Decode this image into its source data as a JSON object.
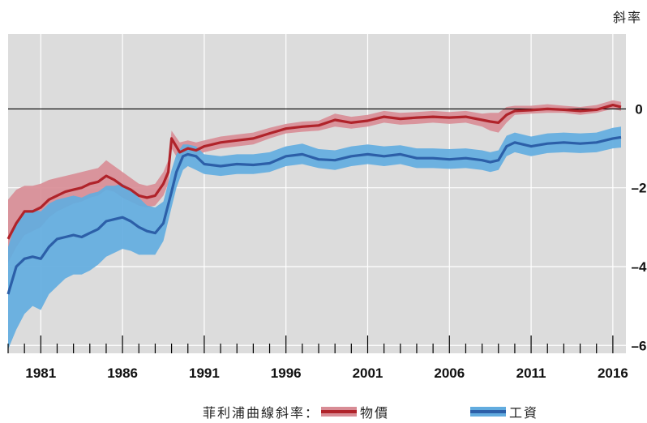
{
  "unit_label": "斜率",
  "legend": {
    "title": "菲利浦曲線斜率：",
    "items": [
      {
        "label": "物價",
        "band_color": "#d88c95",
        "line_color": "#b0232a"
      },
      {
        "label": "工資",
        "band_color": "#62acdf",
        "line_color": "#2c5fa8"
      }
    ]
  },
  "chart_data": {
    "type": "line",
    "title": "",
    "xlabel": "",
    "ylabel": "斜率",
    "xlim": [
      1979,
      2016.8
    ],
    "ylim": [
      -6.2,
      1.9
    ],
    "x_ticks": [
      "1981",
      "1986",
      "1991",
      "1996",
      "2001",
      "2006",
      "2011",
      "2016"
    ],
    "y_ticks": [
      "0",
      "-2",
      "-4",
      "-6"
    ],
    "grid": true,
    "zero_line": true,
    "legend_position": "bottom",
    "series": [
      {
        "name": "物價",
        "color": "#b0232a",
        "band_color": "#d88c95",
        "x": [
          1979.0,
          1979.5,
          1980.0,
          1980.5,
          1981.0,
          1981.5,
          1982.0,
          1982.5,
          1983.0,
          1983.5,
          1984.0,
          1984.5,
          1985.0,
          1985.5,
          1986.0,
          1986.5,
          1987.0,
          1987.5,
          1988.0,
          1988.5,
          1988.8,
          1989.0,
          1989.5,
          1990.0,
          1990.5,
          1991.0,
          1992.0,
          1993.0,
          1994.0,
          1995.0,
          1996.0,
          1997.0,
          1998.0,
          1999.0,
          2000.0,
          2001.0,
          2002.0,
          2003.0,
          2004.0,
          2005.0,
          2006.0,
          2007.0,
          2008.0,
          2008.5,
          2009.0,
          2009.5,
          2010.0,
          2011.0,
          2012.0,
          2013.0,
          2014.0,
          2015.0,
          2016.0,
          2016.5
        ],
        "y": [
          -3.3,
          -2.9,
          -2.6,
          -2.6,
          -2.5,
          -2.3,
          -2.2,
          -2.1,
          -2.05,
          -2.0,
          -1.9,
          -1.85,
          -1.7,
          -1.8,
          -1.95,
          -2.05,
          -2.2,
          -2.25,
          -2.2,
          -1.9,
          -1.6,
          -0.75,
          -1.1,
          -1.0,
          -1.05,
          -0.95,
          -0.85,
          -0.8,
          -0.75,
          -0.62,
          -0.5,
          -0.45,
          -0.42,
          -0.28,
          -0.35,
          -0.3,
          -0.2,
          -0.25,
          -0.22,
          -0.2,
          -0.22,
          -0.2,
          -0.28,
          -0.32,
          -0.35,
          -0.15,
          -0.05,
          -0.03,
          0.0,
          -0.02,
          -0.05,
          -0.02,
          0.1,
          0.05
        ],
        "lower": [
          -3.9,
          -3.5,
          -3.2,
          -3.1,
          -3.0,
          -2.75,
          -2.6,
          -2.5,
          -2.4,
          -2.35,
          -2.25,
          -2.2,
          -2.05,
          -2.1,
          -2.25,
          -2.35,
          -2.45,
          -2.5,
          -2.45,
          -2.2,
          -1.9,
          -1.0,
          -1.35,
          -1.2,
          -1.2,
          -1.1,
          -1.0,
          -0.95,
          -0.9,
          -0.75,
          -0.62,
          -0.58,
          -0.55,
          -0.45,
          -0.5,
          -0.45,
          -0.35,
          -0.4,
          -0.38,
          -0.35,
          -0.38,
          -0.35,
          -0.45,
          -0.55,
          -0.6,
          -0.35,
          -0.15,
          -0.12,
          -0.1,
          -0.1,
          -0.15,
          -0.1,
          0.0,
          -0.05
        ],
        "upper": [
          -2.3,
          -2.05,
          -1.95,
          -1.95,
          -1.9,
          -1.8,
          -1.75,
          -1.7,
          -1.65,
          -1.6,
          -1.55,
          -1.5,
          -1.3,
          -1.45,
          -1.6,
          -1.75,
          -1.9,
          -1.95,
          -1.9,
          -1.6,
          -1.3,
          -0.55,
          -0.85,
          -0.8,
          -0.85,
          -0.8,
          -0.7,
          -0.65,
          -0.6,
          -0.48,
          -0.38,
          -0.32,
          -0.3,
          -0.12,
          -0.2,
          -0.15,
          -0.05,
          -0.1,
          -0.08,
          -0.05,
          -0.08,
          -0.05,
          -0.12,
          -0.1,
          -0.1,
          0.05,
          0.08,
          0.08,
          0.12,
          0.08,
          0.05,
          0.1,
          0.22,
          0.18
        ]
      },
      {
        "name": "工資",
        "color": "#2c5fa8",
        "band_color": "#62acdf",
        "x": [
          1979.0,
          1979.5,
          1980.0,
          1980.5,
          1981.0,
          1981.5,
          1982.0,
          1982.5,
          1983.0,
          1983.5,
          1984.0,
          1984.5,
          1985.0,
          1985.5,
          1986.0,
          1986.5,
          1987.0,
          1987.5,
          1988.0,
          1988.5,
          1989.0,
          1989.3,
          1989.7,
          1990.0,
          1990.5,
          1991.0,
          1992.0,
          1993.0,
          1994.0,
          1995.0,
          1996.0,
          1997.0,
          1998.0,
          1999.0,
          2000.0,
          2001.0,
          2002.0,
          2003.0,
          2004.0,
          2005.0,
          2006.0,
          2007.0,
          2008.0,
          2008.5,
          2009.0,
          2009.5,
          2010.0,
          2011.0,
          2012.0,
          2013.0,
          2014.0,
          2015.0,
          2016.0,
          2016.5
        ],
        "y": [
          -4.7,
          -4.0,
          -3.8,
          -3.75,
          -3.8,
          -3.5,
          -3.3,
          -3.25,
          -3.2,
          -3.25,
          -3.15,
          -3.05,
          -2.85,
          -2.8,
          -2.75,
          -2.85,
          -3.0,
          -3.1,
          -3.15,
          -2.9,
          -2.1,
          -1.6,
          -1.2,
          -1.15,
          -1.2,
          -1.4,
          -1.45,
          -1.4,
          -1.42,
          -1.38,
          -1.2,
          -1.15,
          -1.28,
          -1.3,
          -1.2,
          -1.15,
          -1.2,
          -1.15,
          -1.25,
          -1.25,
          -1.28,
          -1.25,
          -1.3,
          -1.35,
          -1.3,
          -0.95,
          -0.85,
          -0.95,
          -0.88,
          -0.85,
          -0.88,
          -0.85,
          -0.75,
          -0.72
        ],
        "lower": [
          -6.1,
          -5.6,
          -5.2,
          -5.0,
          -5.1,
          -4.7,
          -4.5,
          -4.3,
          -4.2,
          -4.2,
          -4.1,
          -3.95,
          -3.75,
          -3.65,
          -3.55,
          -3.6,
          -3.7,
          -3.7,
          -3.7,
          -3.35,
          -2.5,
          -2.0,
          -1.55,
          -1.45,
          -1.55,
          -1.65,
          -1.7,
          -1.65,
          -1.65,
          -1.6,
          -1.45,
          -1.4,
          -1.5,
          -1.55,
          -1.45,
          -1.4,
          -1.45,
          -1.4,
          -1.5,
          -1.5,
          -1.52,
          -1.5,
          -1.55,
          -1.6,
          -1.55,
          -1.2,
          -1.1,
          -1.2,
          -1.12,
          -1.1,
          -1.12,
          -1.1,
          -1.0,
          -0.98
        ],
        "upper": [
          -3.5,
          -2.85,
          -2.6,
          -2.55,
          -2.6,
          -2.4,
          -2.3,
          -2.25,
          -2.2,
          -2.25,
          -2.15,
          -2.1,
          -1.95,
          -1.95,
          -1.9,
          -2.05,
          -2.25,
          -2.45,
          -2.5,
          -2.35,
          -1.55,
          -1.15,
          -0.9,
          -0.9,
          -0.95,
          -1.15,
          -1.2,
          -1.15,
          -1.15,
          -1.1,
          -0.95,
          -0.88,
          -1.02,
          -1.05,
          -0.95,
          -0.9,
          -0.95,
          -0.92,
          -1.0,
          -1.0,
          -1.02,
          -1.0,
          -1.05,
          -1.1,
          -1.05,
          -0.68,
          -0.6,
          -0.7,
          -0.62,
          -0.6,
          -0.62,
          -0.6,
          -0.48,
          -0.45
        ]
      }
    ]
  }
}
